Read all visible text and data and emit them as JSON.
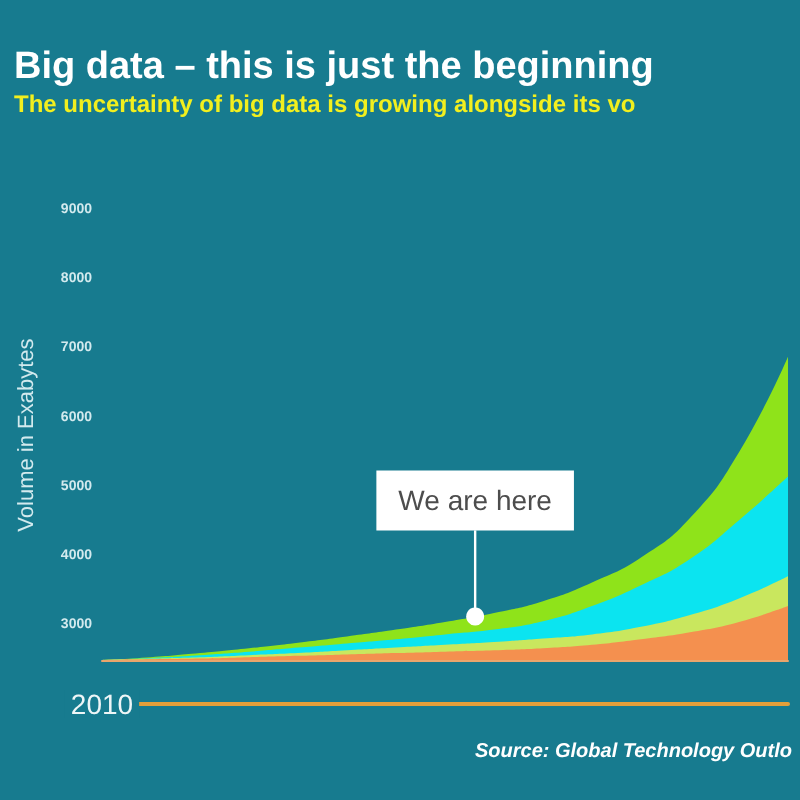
{
  "chart_data": {
    "type": "area",
    "title": "Big data – this is just the beginning",
    "subtitle": "The uncertainty of big data is growing alongside its vo",
    "ylabel": "Volume in Exabytes",
    "categories": [
      "2010",
      null,
      null,
      null,
      null,
      null,
      null,
      null,
      null,
      null,
      null,
      null,
      null,
      null,
      null
    ],
    "series": [
      {
        "color": "#8fe31a",
        "values": [
          2500,
          2540,
          2600,
          2670,
          2750,
          2840,
          2940,
          3050,
          3180,
          3350,
          3620,
          3980,
          4550,
          5500,
          6880
        ]
      },
      {
        "color": "#0be4f0",
        "values": [
          2500,
          2530,
          2570,
          2620,
          2680,
          2740,
          2800,
          2870,
          2940,
          3060,
          3280,
          3580,
          3960,
          4520,
          5150
        ]
      },
      {
        "color": "#c9e75e",
        "values": [
          2500,
          2520,
          2540,
          2570,
          2600,
          2640,
          2680,
          2720,
          2760,
          2810,
          2870,
          2980,
          3150,
          3390,
          3710
        ]
      },
      {
        "color": "#f4904f",
        "values": [
          2500,
          2510,
          2520,
          2540,
          2560,
          2580,
          2600,
          2620,
          2640,
          2670,
          2720,
          2800,
          2900,
          3050,
          3280
        ]
      }
    ],
    "ylim": [
      2500,
      9000
    ],
    "yticks": [
      3000,
      4000,
      5000,
      6000,
      7000,
      8000,
      9000
    ],
    "annotations": [
      {
        "text": "We are here",
        "y": 3130
      },
      "Source: Global Technology Outlo"
    ]
  }
}
